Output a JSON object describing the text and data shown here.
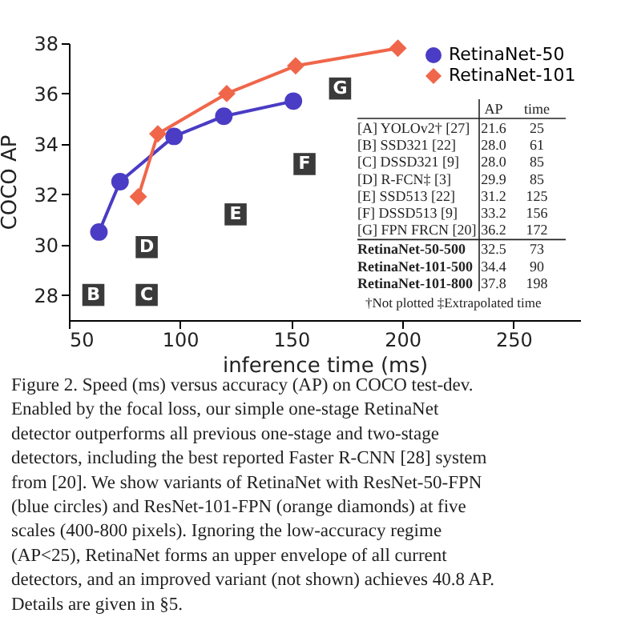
{
  "chart_data": {
    "type": "line",
    "xlabel": "inference time (ms)",
    "ylabel": "COCO AP",
    "xlim": [
      50,
      280
    ],
    "xticks": [
      50,
      100,
      150,
      200,
      250
    ],
    "ylim": [
      27,
      38
    ],
    "yticks": [
      28,
      30,
      32,
      34,
      36,
      38
    ],
    "grid": false,
    "legend": "top right",
    "line_style": "solid",
    "series": [
      {
        "name": "RetinaNet-50",
        "color": "#4a3cc4",
        "marker": "circle",
        "x": [
          63.5,
          73,
          97.3,
          119.7,
          151
        ],
        "values": [
          30.5,
          32.5,
          34.3,
          35.1,
          35.7
        ]
      },
      {
        "name": "RetinaNet-101",
        "color": "#f0664a",
        "marker": "diamond",
        "x": [
          81.2,
          90,
          121,
          152,
          198
        ],
        "values": [
          31.9,
          34.4,
          36.0,
          37.1,
          37.8
        ]
      }
    ],
    "annotations": [
      {
        "text": "B",
        "x": 61,
        "y": 28
      },
      {
        "text": "C",
        "x": 85,
        "y": 28
      },
      {
        "text": "D",
        "x": 85,
        "y": 29.9
      },
      {
        "text": "E",
        "x": 125,
        "y": 31.2
      },
      {
        "text": "F",
        "x": 156,
        "y": 33.2
      },
      {
        "text": "G",
        "x": 172,
        "y": 36.2
      },
      "AP",
      "time",
      "[A] YOLOv2† [27]",
      "21.6",
      "25",
      "[B] SSD321 [22]",
      "28.0",
      "61",
      "[C] DSSD321 [9]",
      "28.0",
      "85",
      "[D] R-FCN‡ [3]",
      "29.9",
      "85",
      "[E] SSD513 [22]",
      "31.2",
      "125",
      "[F] DSSD513 [9]",
      "33.2",
      "156",
      "[G] FPN FRCN [20]",
      "36.2",
      "172",
      "RetinaNet-50-500",
      "32.5",
      "73",
      "RetinaNet-101-500",
      "34.4",
      "90",
      "RetinaNet-101-800",
      "37.8",
      "198",
      "†Not plotted   ‡Extrapolated time",
      "Figure 2. Speed (ms) versus accuracy (AP) on COCO test-dev. Enabled by the focal loss, our simple one-stage RetinaNet detector outperforms all previous one-stage and two-stage detectors, including the best reported Faster R-CNN [28] system from [20]. We show variants of RetinaNet with ResNet-50-FPN (blue circles) and ResNet-101-FPN (orange diamonds) at five scales (400-800 pixels). Ignoring the low-accuracy regime (AP<25), RetinaNet forms an upper envelope of all current detectors, and an improved variant (not shown) achieves 40.8 AP. Details are given in §5."
    ]
  }
}
